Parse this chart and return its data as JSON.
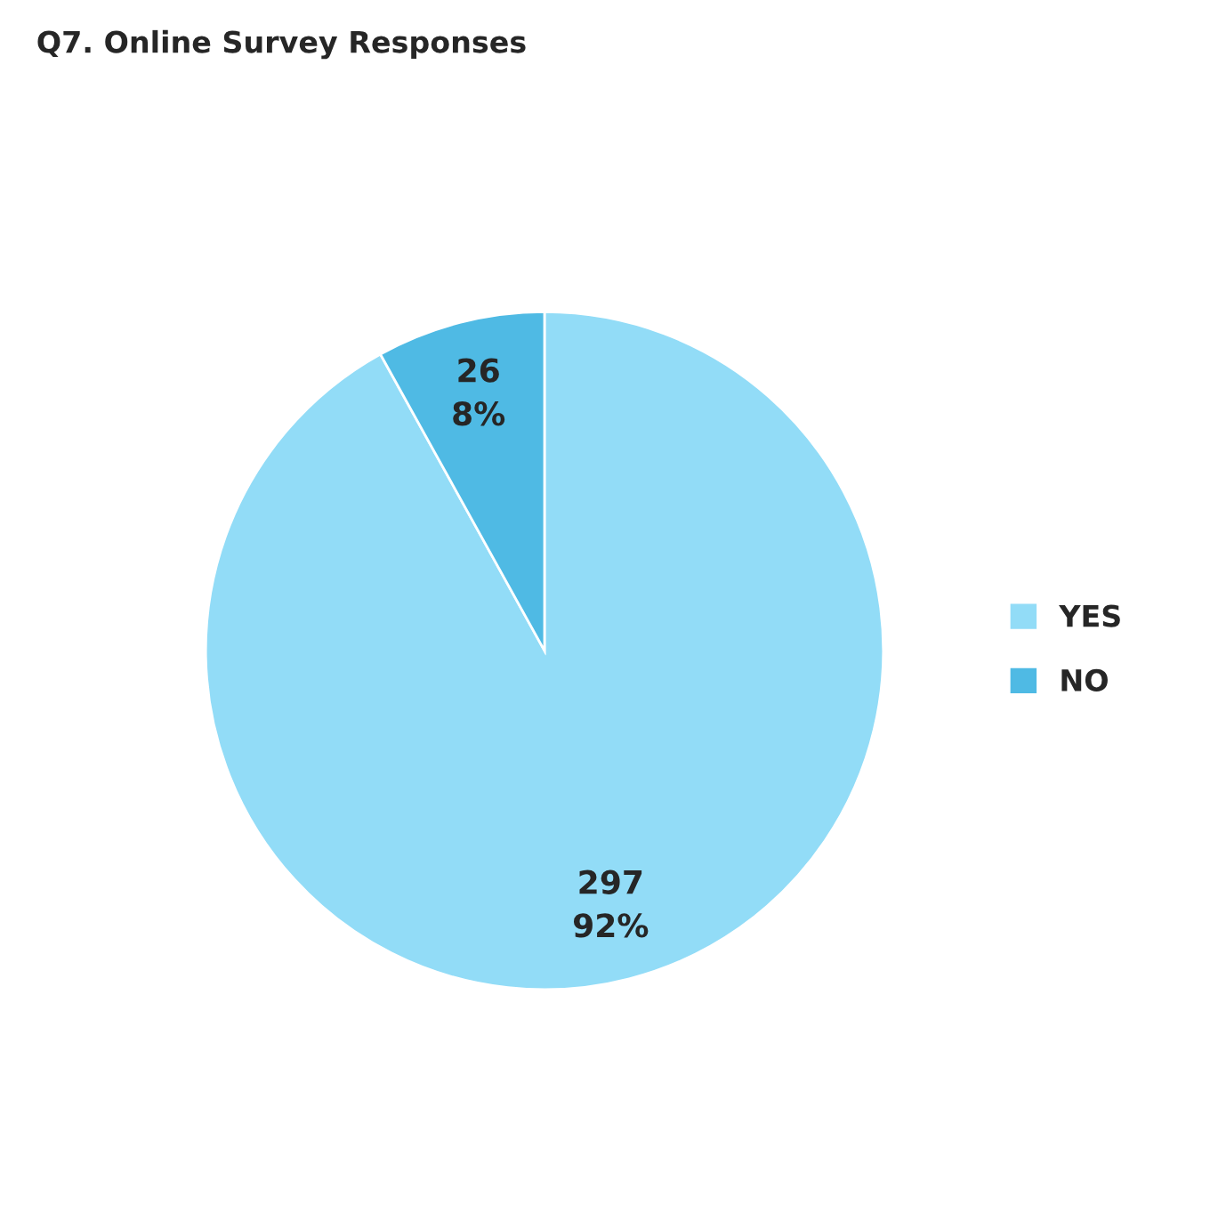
{
  "chart_data": {
    "type": "pie",
    "title": "Q7. Online Survey Responses",
    "categories": [
      "YES",
      "NO"
    ],
    "values": [
      297,
      26
    ],
    "colors": [
      "#92dcf7",
      "#4fbae4"
    ],
    "value_labels": [
      "297\n92%",
      "26\n8%"
    ],
    "legend": "right"
  }
}
